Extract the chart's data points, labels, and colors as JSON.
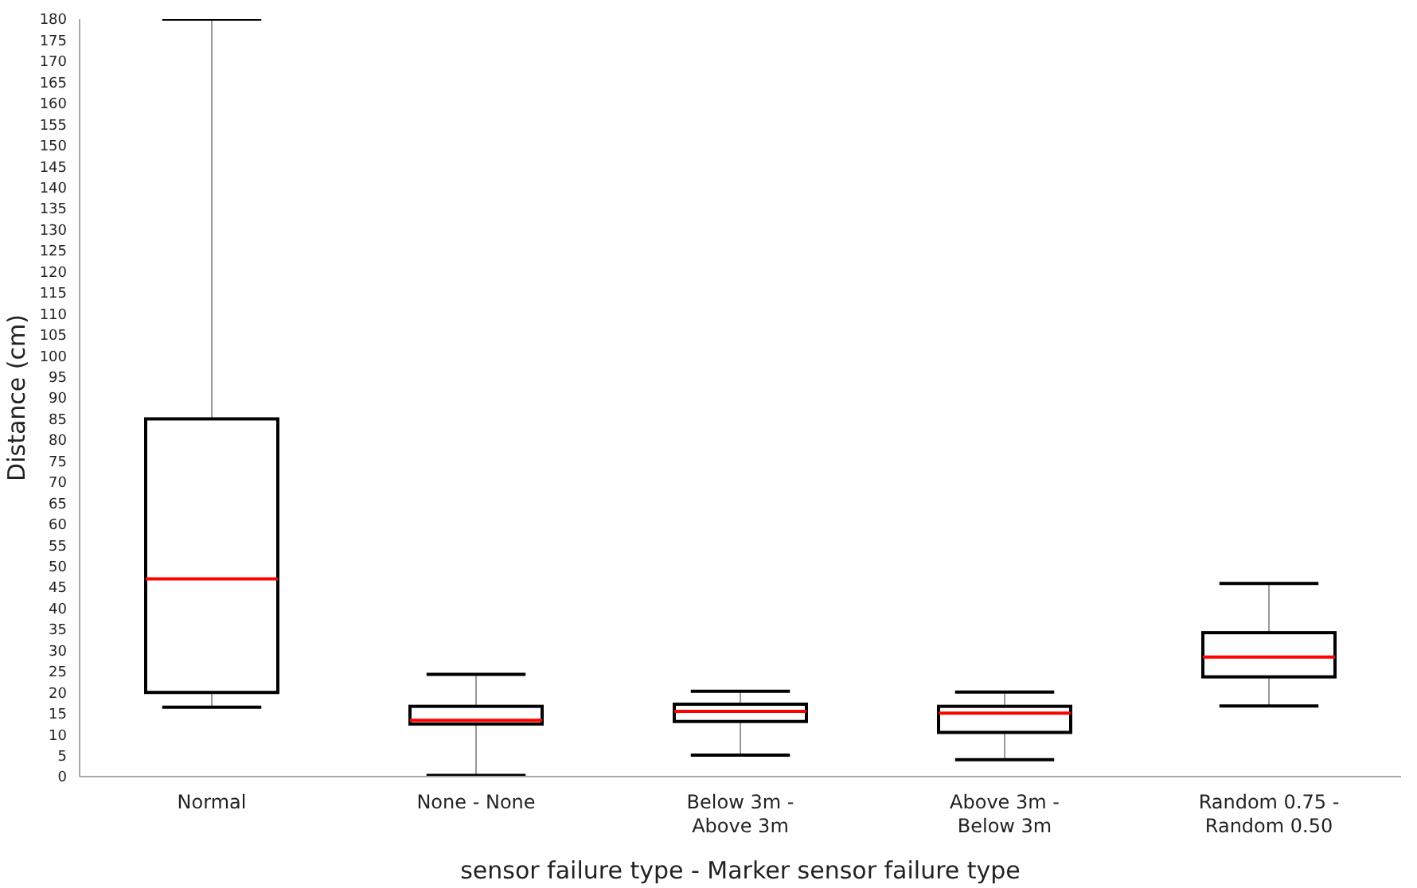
{
  "chart_data": {
    "type": "box",
    "xlabel": "sensor failure type - Marker sensor failure type",
    "ylabel": "Distance (cm)",
    "categories": [
      "Normal",
      "None - None",
      "Below 3m - Above 3m",
      "Above 3m - Below 3m",
      "Random 0.75 - Random 0.50"
    ],
    "color": "#000000",
    "boxes": [
      {
        "low": 16.5,
        "q1": 20,
        "median": 47,
        "q3": 85,
        "high": 180
      },
      {
        "low": 0.3,
        "q1": 12.5,
        "median": 13.4,
        "q3": 16.7,
        "high": 24.3
      },
      {
        "low": 5.1,
        "q1": 13.1,
        "median": 15.5,
        "q3": 17.2,
        "high": 20.3
      },
      {
        "low": 4,
        "q1": 10.5,
        "median": 15.1,
        "q3": 16.7,
        "high": 20.1
      },
      {
        "low": 16.8,
        "q1": 23.7,
        "median": 28.4,
        "q3": 34.2,
        "high": 45.9
      }
    ],
    "ylim": [
      0,
      180
    ],
    "yticks": [
      0,
      5,
      10,
      15,
      20,
      25,
      30,
      35,
      40,
      45,
      50,
      55,
      60,
      65,
      70,
      75,
      80,
      85,
      90,
      95,
      100,
      105,
      110,
      115,
      120,
      125,
      130,
      135,
      140,
      145,
      150,
      155,
      160,
      165,
      170,
      175,
      180
    ]
  }
}
